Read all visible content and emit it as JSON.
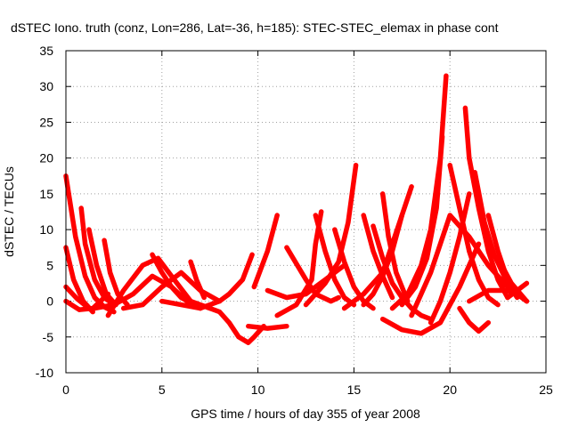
{
  "chart_data": {
    "type": "scatter",
    "title": "dSTEC Iono. truth (conz, Lon=286, Lat=-36, h=185): STEC-STEC_elemax in phase cont",
    "xlabel": "GPS time / hours of day 355 of year 2008",
    "ylabel": "dSTEC  / TECUs",
    "xlim": [
      0,
      25
    ],
    "ylim": [
      -10,
      35
    ],
    "xticks": [
      0,
      5,
      10,
      15,
      20,
      25
    ],
    "yticks": [
      -10,
      -5,
      0,
      5,
      10,
      15,
      20,
      25,
      30,
      35
    ],
    "grid": true,
    "marker": "plus",
    "color": "#ff0000",
    "series": [
      {
        "x": [
          0.0,
          0.5,
          1.0,
          1.5,
          2.0,
          2.5
        ],
        "y": [
          17.5,
          9.0,
          3.5,
          0.5,
          -0.8,
          -1.5
        ]
      },
      {
        "x": [
          0.0,
          0.4,
          0.9,
          1.4
        ],
        "y": [
          7.5,
          3.0,
          0.0,
          -1.5
        ]
      },
      {
        "x": [
          0.0,
          0.6,
          1.2
        ],
        "y": [
          2.0,
          0.3,
          -1.0
        ]
      },
      {
        "x": [
          0.0,
          0.7,
          1.4,
          2.2
        ],
        "y": [
          0.0,
          -1.2,
          -1.0,
          1.0
        ]
      },
      {
        "x": [
          0.8,
          1.0,
          1.5,
          2.0,
          2.5
        ],
        "y": [
          13.0,
          8.0,
          3.0,
          0.5,
          -0.5
        ]
      },
      {
        "x": [
          1.2,
          1.6,
          2.1,
          2.6
        ],
        "y": [
          10.0,
          5.0,
          1.0,
          -0.5
        ]
      },
      {
        "x": [
          2.0,
          2.3,
          2.7,
          3.2
        ],
        "y": [
          8.5,
          4.0,
          1.0,
          -0.5
        ]
      },
      {
        "x": [
          2.2,
          3.0,
          4.0,
          4.8,
          5.5,
          6.5,
          7.5
        ],
        "y": [
          -2.0,
          1.5,
          5.0,
          6.0,
          3.5,
          0.0,
          -1.0
        ]
      },
      {
        "x": [
          1.5,
          2.5,
          3.5,
          4.5,
          5.5,
          6.5
        ],
        "y": [
          -1.0,
          -0.5,
          1.0,
          3.5,
          2.0,
          -0.5
        ]
      },
      {
        "x": [
          3.0,
          4.0,
          5.0,
          6.0,
          7.0,
          8.0
        ],
        "y": [
          -1.0,
          -0.5,
          2.0,
          4.0,
          1.5,
          0.0
        ]
      },
      {
        "x": [
          4.5,
          5.0,
          5.5,
          6.0,
          7.0
        ],
        "y": [
          6.5,
          4.0,
          2.0,
          0.5,
          -1.0
        ]
      },
      {
        "x": [
          6.5,
          6.8,
          7.2
        ],
        "y": [
          5.5,
          3.0,
          0.5
        ]
      },
      {
        "x": [
          5.0,
          6.0,
          7.0,
          8.0,
          8.5,
          9.2,
          9.7
        ],
        "y": [
          0.0,
          -0.5,
          -1.0,
          0.0,
          1.0,
          3.0,
          6.5
        ]
      },
      {
        "x": [
          7.0,
          8.0,
          8.5,
          9.0,
          9.5,
          9.8,
          10.3
        ],
        "y": [
          -0.5,
          -1.5,
          -3.0,
          -5.0,
          -5.8,
          -5.0,
          -3.5
        ]
      },
      {
        "x": [
          9.8,
          10.5,
          11.0
        ],
        "y": [
          2.0,
          7.0,
          12.0
        ]
      },
      {
        "x": [
          9.5,
          10.5,
          11.5
        ],
        "y": [
          -3.5,
          -3.8,
          -3.5
        ]
      },
      {
        "x": [
          10.5,
          11.5,
          12.5,
          13.5,
          14.5
        ],
        "y": [
          1.5,
          0.5,
          1.0,
          3.0,
          5.0
        ]
      },
      {
        "x": [
          11.0,
          12.0,
          12.8,
          13.0,
          13.3
        ],
        "y": [
          -2.0,
          -0.5,
          3.0,
          8.0,
          12.5
        ]
      },
      {
        "x": [
          11.5,
          12.5,
          13.0,
          13.8,
          14.2
        ],
        "y": [
          7.5,
          3.0,
          1.0,
          0.0,
          0.5
        ]
      },
      {
        "x": [
          12.5,
          13.5,
          14.2,
          14.7,
          15.1
        ],
        "y": [
          -0.5,
          2.5,
          5.5,
          11.0,
          19.0
        ]
      },
      {
        "x": [
          13.0,
          13.5,
          14.0,
          14.5,
          15.0
        ],
        "y": [
          12.0,
          7.0,
          3.0,
          0.5,
          -0.5
        ]
      },
      {
        "x": [
          14.0,
          14.5,
          15.0,
          15.5,
          16.0
        ],
        "y": [
          10.0,
          5.5,
          2.0,
          0.0,
          -1.0
        ]
      },
      {
        "x": [
          14.5,
          15.5,
          16.5,
          17.0,
          17.5
        ],
        "y": [
          -1.0,
          1.0,
          4.0,
          8.0,
          12.0
        ]
      },
      {
        "x": [
          15.5,
          16.0,
          16.5,
          17.0
        ],
        "y": [
          12.0,
          7.0,
          3.5,
          0.5
        ]
      },
      {
        "x": [
          15.5,
          16.0,
          16.5,
          17.0,
          17.5,
          18.0
        ],
        "y": [
          -0.5,
          1.0,
          3.5,
          7.0,
          12.0,
          16.0
        ]
      },
      {
        "x": [
          16.5,
          16.8,
          17.2,
          17.8
        ],
        "y": [
          15.0,
          9.0,
          4.0,
          0.0
        ]
      },
      {
        "x": [
          16.0,
          16.5,
          17.0,
          17.5,
          18.0,
          18.5,
          19.0
        ],
        "y": [
          10.5,
          6.0,
          2.5,
          0.5,
          -1.0,
          -2.0,
          -2.5
        ]
      },
      {
        "x": [
          17.0,
          17.8,
          18.5,
          19.0,
          19.5,
          19.8
        ],
        "y": [
          -1.0,
          1.0,
          5.0,
          10.0,
          20.0,
          31.5
        ]
      },
      {
        "x": [
          17.5,
          18.2,
          18.8,
          19.3,
          19.6
        ],
        "y": [
          -0.5,
          2.0,
          6.0,
          13.0,
          23.0
        ]
      },
      {
        "x": [
          18.0,
          18.5,
          19.0,
          19.5,
          20.0,
          21.0,
          22.0,
          23.0,
          24.0
        ],
        "y": [
          -2.0,
          1.0,
          4.0,
          8.0,
          12.0,
          9.0,
          5.0,
          2.0,
          0.0
        ]
      },
      {
        "x": [
          16.5,
          17.5,
          18.5,
          19.5,
          20.5,
          21.5
        ],
        "y": [
          -2.5,
          -4.0,
          -4.5,
          -3.0,
          2.0,
          8.0
        ]
      },
      {
        "x": [
          19.0,
          19.5,
          20.0,
          20.5,
          21.0
        ],
        "y": [
          -3.0,
          0.0,
          4.0,
          9.0,
          15.0
        ]
      },
      {
        "x": [
          20.0,
          20.5,
          21.0,
          21.5,
          22.0,
          22.5
        ],
        "y": [
          19.0,
          13.0,
          7.0,
          3.0,
          0.5,
          -0.5
        ]
      },
      {
        "x": [
          20.8,
          21.0,
          21.5,
          22.0,
          22.5,
          23.0
        ],
        "y": [
          27.0,
          20.0,
          13.0,
          7.0,
          3.0,
          0.5
        ]
      },
      {
        "x": [
          21.3,
          21.8,
          22.3,
          23.0,
          23.5
        ],
        "y": [
          18.0,
          11.0,
          6.5,
          2.5,
          0.5
        ]
      },
      {
        "x": [
          20.5,
          21.0,
          21.5,
          22.0
        ],
        "y": [
          -1.0,
          -3.0,
          -4.2,
          -3.0
        ]
      },
      {
        "x": [
          22.0,
          22.5,
          23.0,
          23.5,
          24.0
        ],
        "y": [
          12.0,
          7.0,
          3.0,
          1.0,
          0.0
        ]
      },
      {
        "x": [
          21.0,
          22.0,
          23.0,
          23.8
        ],
        "y": [
          0.0,
          1.5,
          1.5,
          0.5
        ]
      },
      {
        "x": [
          22.5,
          23.2,
          24.0
        ],
        "y": [
          6.0,
          2.5,
          0.0
        ]
      },
      {
        "x": [
          23.0,
          23.5,
          24.0
        ],
        "y": [
          0.5,
          1.5,
          2.5
        ]
      }
    ]
  }
}
